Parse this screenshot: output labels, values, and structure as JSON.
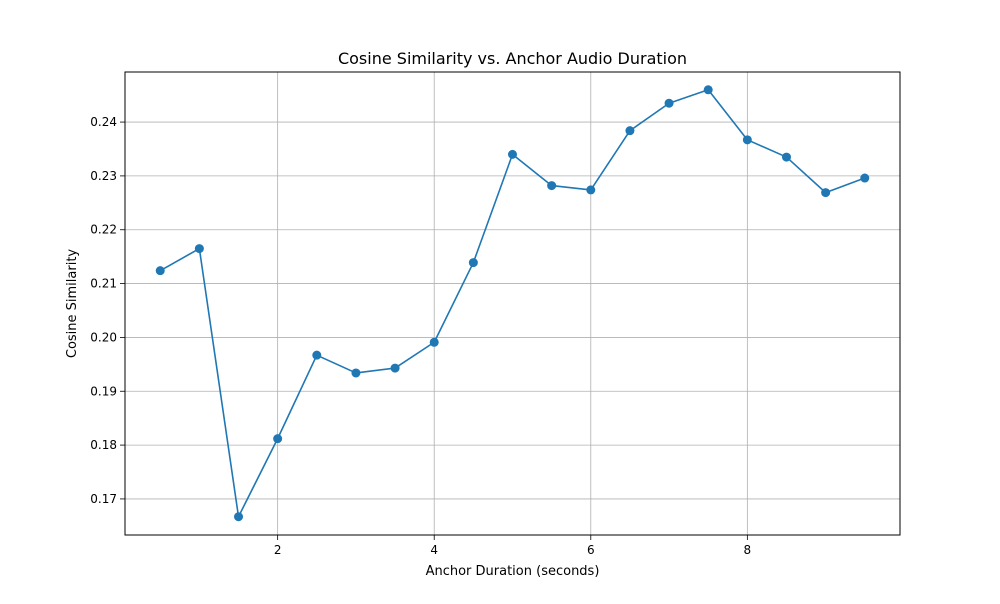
{
  "chart_data": {
    "type": "line",
    "title": "Cosine Similarity vs. Anchor Audio Duration",
    "xlabel": "Anchor Duration (seconds)",
    "ylabel": "Cosine Similarity",
    "xlim": [
      0.05,
      9.95
    ],
    "ylim": [
      0.1633,
      0.2493
    ],
    "xticks": [
      2,
      4,
      6,
      8
    ],
    "xtick_labels": [
      "2",
      "4",
      "6",
      "8"
    ],
    "yticks": [
      0.17,
      0.18,
      0.19,
      0.2,
      0.21,
      0.22,
      0.23,
      0.24
    ],
    "ytick_labels": [
      "0.17",
      "0.18",
      "0.19",
      "0.20",
      "0.21",
      "0.22",
      "0.23",
      "0.24"
    ],
    "grid": true,
    "legend": "none",
    "series": [
      {
        "color": "#1f77b4",
        "marker": "circle",
        "x": [
          0.5,
          1.0,
          1.5,
          2.0,
          2.5,
          3.0,
          3.5,
          4.0,
          4.5,
          5.0,
          5.5,
          6.0,
          6.5,
          7.0,
          7.5,
          8.0,
          8.5,
          9.0,
          9.5
        ],
        "y": [
          0.2124,
          0.2165,
          0.1667,
          0.1812,
          0.1967,
          0.1934,
          0.1943,
          0.1991,
          0.2139,
          0.234,
          0.2282,
          0.2274,
          0.2384,
          0.2435,
          0.246,
          0.2367,
          0.2335,
          0.2269,
          0.2296
        ]
      }
    ]
  }
}
